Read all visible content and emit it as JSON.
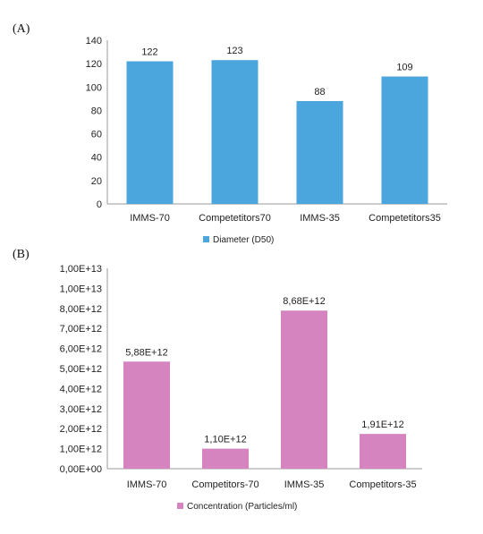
{
  "panels": [
    {
      "label": "(A)"
    },
    {
      "label": "(B)"
    }
  ],
  "chart_data": [
    {
      "type": "bar",
      "categories": [
        "IMMS-70",
        "Competetitors70",
        "IMMS-35",
        "Competetitors35"
      ],
      "series": [
        {
          "name": "Diameter (D50)",
          "values": [
            122,
            123,
            88,
            109
          ]
        }
      ],
      "data_labels": [
        "122",
        "123",
        "88",
        "109"
      ],
      "yticks": [
        "0",
        "20",
        "40",
        "60",
        "80",
        "100",
        "120",
        "140"
      ],
      "ylim": [
        0,
        140
      ],
      "color": "#4aa6dc",
      "legend_position": "bottom",
      "grid": false
    },
    {
      "type": "bar",
      "categories": [
        "IMMS-70",
        "Competitors-70",
        "IMMS-35",
        "Competitors-35"
      ],
      "series": [
        {
          "name": "Concentration (Particles/ml)",
          "values": [
            5880000000000.0,
            1100000000000.0,
            8680000000000.0,
            1910000000000.0
          ]
        }
      ],
      "data_labels": [
        "5,88E+12",
        "1,10E+12",
        "8,68E+12",
        "1,91E+12"
      ],
      "yticks": [
        "0,00E+00",
        "1,00E+12",
        "2,00E+12",
        "3,00E+12",
        "4,00E+12",
        "5,00E+12",
        "6,00E+12",
        "7,00E+12",
        "8,00E+12",
        "1,00E+13",
        "1,00E+13"
      ],
      "ylim": [
        0,
        11000000000000.0
      ],
      "color": "#d684c0",
      "legend_position": "bottom",
      "grid": false
    }
  ]
}
